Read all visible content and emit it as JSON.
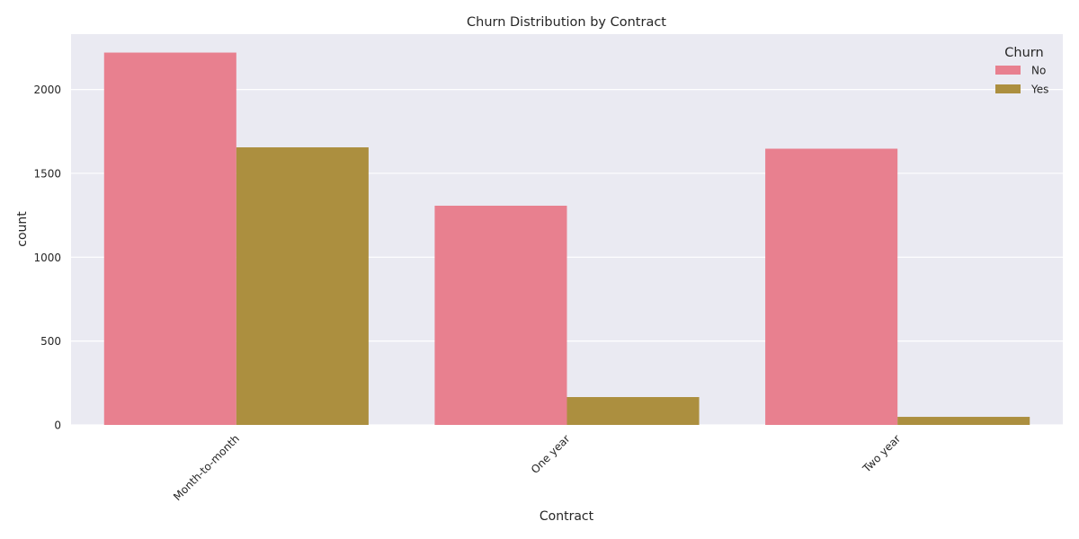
{
  "chart_data": {
    "type": "bar",
    "title": "Churn Distribution by Contract",
    "xlabel": "Contract",
    "ylabel": "count",
    "categories": [
      "Month-to-month",
      "One year",
      "Two year"
    ],
    "series": [
      {
        "name": "No",
        "values": [
          2220,
          1307,
          1647
        ],
        "color": "#e8808f"
      },
      {
        "name": "Yes",
        "values": [
          1655,
          166,
          48
        ],
        "color": "#ac8f3f"
      }
    ],
    "ylim": [
      0,
      2330
    ],
    "yticks": [
      0,
      500,
      1000,
      1500,
      2000
    ],
    "grid": "y",
    "legend": {
      "title": "Churn",
      "placement": "top-right"
    },
    "xtick_rotation": -45
  }
}
